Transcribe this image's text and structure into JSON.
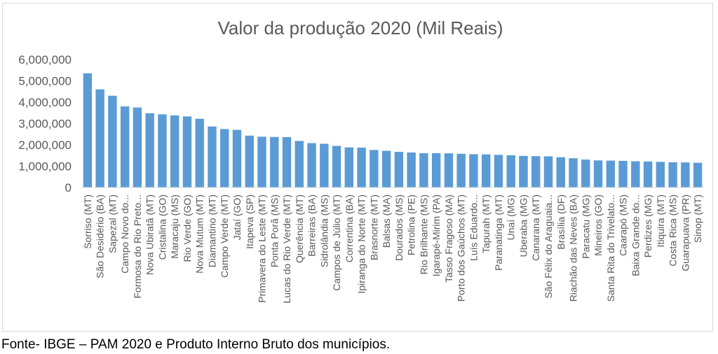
{
  "chart_data": {
    "type": "bar",
    "title": "Valor da produção 2020 (Mil Reais)",
    "xlabel": "",
    "ylabel": "",
    "ylim": [
      0,
      6000000
    ],
    "yticks": [
      "0",
      "1,000,000",
      "2,000,000",
      "3,000,000",
      "4,000,000",
      "5,000,000",
      "6,000,000"
    ],
    "grid": false,
    "legend": "none",
    "bar_color": "#5b9bd5",
    "categories": [
      "Sorriso (MT)",
      "São Desidério (BA)",
      "Sapezal (MT)",
      "Campo Novo do...",
      "Formosa do Rio Preto...",
      "Nova Ubiratã (MT)",
      "Cristalina (GO)",
      "Maracaju (MS)",
      "Rio Verde (GO)",
      "Nova Mutum (MT)",
      "Diamantino (MT)",
      "Campo Verde (MT)",
      "Jataí (GO)",
      "Itapeva (SP)",
      "Primavera do Leste (MT)",
      "Ponta Porã (MS)",
      "Lucas do Rio Verde (MT)",
      "Querência (MT)",
      "Barreiras (BA)",
      "Sidrolândia (MS)",
      "Campos de Júlio (MT)",
      "Correntina (BA)",
      "Ipiranga do Norte (MT)",
      "Brasnorte (MT)",
      "Balsas (MA)",
      "Dourados (MS)",
      "Petrolina (PE)",
      "Rio Brilhante (MS)",
      "Igarapé-Mirim (PA)",
      "Tasso Fragoso (MA)",
      "Porto dos Gaúchos (MT)",
      "Luís Eduardo...",
      "Tapurah (MT)",
      "Paranatinga (MT)",
      "Unaí (MG)",
      "Uberaba (MG)",
      "Canarana (MT)",
      "São Félix do Araguaia...",
      "Brasília (DF)",
      "Riachão das Neves (BA)",
      "Paracatu (MG)",
      "Mineiros (GO)",
      "Santa Rita do Trivelato...",
      "Caarapó (MS)",
      "Baixa Grande do...",
      "Perdizes (MG)",
      "Itiquira (MT)",
      "Costa Rica (MS)",
      "Guarapuava (PR)",
      "Sinop (MT)"
    ],
    "values": [
      5350000,
      4600000,
      4300000,
      3800000,
      3750000,
      3480000,
      3430000,
      3380000,
      3330000,
      3220000,
      2860000,
      2740000,
      2700000,
      2430000,
      2380000,
      2370000,
      2360000,
      2180000,
      2080000,
      2050000,
      1950000,
      1880000,
      1870000,
      1760000,
      1720000,
      1670000,
      1640000,
      1610000,
      1610000,
      1600000,
      1580000,
      1560000,
      1550000,
      1530000,
      1510000,
      1480000,
      1470000,
      1460000,
      1420000,
      1370000,
      1310000,
      1270000,
      1260000,
      1250000,
      1230000,
      1220000,
      1200000,
      1180000,
      1175000,
      1160000
    ]
  },
  "footer": {
    "source": "Fonte- IBGE – PAM 2020 e Produto Interno Bruto dos municípios."
  }
}
